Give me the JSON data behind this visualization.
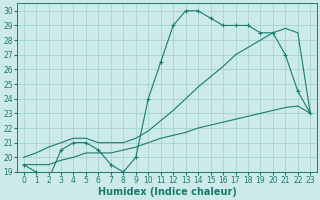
{
  "xlabel": "Humidex (Indice chaleur)",
  "x_hours": [
    0,
    1,
    2,
    3,
    4,
    5,
    6,
    7,
    8,
    9,
    10,
    11,
    12,
    13,
    14,
    15,
    16,
    17,
    18,
    19,
    20,
    21,
    22,
    23
  ],
  "humidex_main": [
    19.5,
    19.0,
    18.5,
    20.5,
    21.0,
    21.0,
    20.5,
    19.5,
    19.0,
    20.0,
    24.0,
    26.5,
    29.0,
    30.0,
    30.0,
    29.5,
    29.0,
    29.0,
    29.0,
    28.5,
    28.5,
    27.0,
    24.5,
    23.0
  ],
  "humidex_upper": [
    20.0,
    20.3,
    20.7,
    21.0,
    21.3,
    21.3,
    21.0,
    21.0,
    21.0,
    21.3,
    21.8,
    22.5,
    23.2,
    24.0,
    24.8,
    25.5,
    26.2,
    27.0,
    27.5,
    28.0,
    28.5,
    28.8,
    28.5,
    23.0
  ],
  "humidex_lower": [
    19.5,
    19.5,
    19.5,
    19.8,
    20.0,
    20.3,
    20.3,
    20.3,
    20.5,
    20.7,
    21.0,
    21.3,
    21.5,
    21.7,
    22.0,
    22.2,
    22.4,
    22.6,
    22.8,
    23.0,
    23.2,
    23.4,
    23.5,
    23.0
  ],
  "ylim": [
    19,
    30.5
  ],
  "xlim": [
    -0.5,
    23.5
  ],
  "yticks": [
    19,
    20,
    21,
    22,
    23,
    24,
    25,
    26,
    27,
    28,
    29,
    30
  ],
  "xticks": [
    0,
    1,
    2,
    3,
    4,
    5,
    6,
    7,
    8,
    9,
    10,
    11,
    12,
    13,
    14,
    15,
    16,
    17,
    18,
    19,
    20,
    21,
    22,
    23
  ],
  "line_color": "#1a7a6e",
  "bg_color": "#cceaea",
  "grid_color": "#9ecece",
  "tick_label_fontsize": 5.5,
  "xlabel_fontsize": 7.0
}
